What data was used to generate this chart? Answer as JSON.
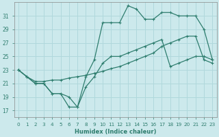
{
  "xlabel": "Humidex (Indice chaleur)",
  "bg_color": "#cce9ec",
  "grid_color": "#b0d8dc",
  "line_color": "#2e7d6e",
  "xlim": [
    -0.5,
    23.5
  ],
  "ylim": [
    16,
    33
  ],
  "xticks": [
    0,
    1,
    2,
    3,
    4,
    5,
    6,
    7,
    8,
    9,
    10,
    11,
    12,
    13,
    14,
    15,
    16,
    17,
    18,
    19,
    20,
    21,
    22,
    23
  ],
  "yticks": [
    17,
    19,
    21,
    23,
    25,
    27,
    29,
    31
  ],
  "curve_top_x": [
    0,
    1,
    2,
    3,
    4,
    5,
    6,
    7,
    8,
    9,
    10,
    11,
    12,
    13,
    14,
    15,
    16,
    17,
    18,
    19,
    20,
    21,
    22,
    23
  ],
  "curve_top_y": [
    23.0,
    22.0,
    21.0,
    21.0,
    19.5,
    19.5,
    19.0,
    17.5,
    22.0,
    24.5,
    30.0,
    30.0,
    30.0,
    32.5,
    32.0,
    30.5,
    30.5,
    31.5,
    31.5,
    31.0,
    31.0,
    31.0,
    29.0,
    24.5
  ],
  "curve_mid_x": [
    0,
    1,
    2,
    3,
    4,
    5,
    6,
    7,
    8,
    9,
    10,
    11,
    12,
    13,
    14,
    15,
    16,
    17,
    18,
    19,
    20,
    21,
    22,
    23
  ],
  "curve_mid_y": [
    23.0,
    22.0,
    21.3,
    21.3,
    21.5,
    21.5,
    21.8,
    22.0,
    22.2,
    22.5,
    22.8,
    23.2,
    23.5,
    24.0,
    24.5,
    25.0,
    25.5,
    26.5,
    27.0,
    27.5,
    28.0,
    28.0,
    24.5,
    24.0
  ],
  "curve_bot_x": [
    0,
    1,
    2,
    3,
    4,
    5,
    6,
    7,
    8,
    9,
    10,
    11,
    12,
    13,
    14,
    15,
    16,
    17,
    18,
    19,
    20,
    21,
    22,
    23
  ],
  "curve_bot_y": [
    23.0,
    22.0,
    21.0,
    21.0,
    19.5,
    19.5,
    17.5,
    17.5,
    20.5,
    22.0,
    24.0,
    25.0,
    25.0,
    25.5,
    26.0,
    26.5,
    27.0,
    27.5,
    23.5,
    24.0,
    24.5,
    25.0,
    25.0,
    24.5
  ]
}
